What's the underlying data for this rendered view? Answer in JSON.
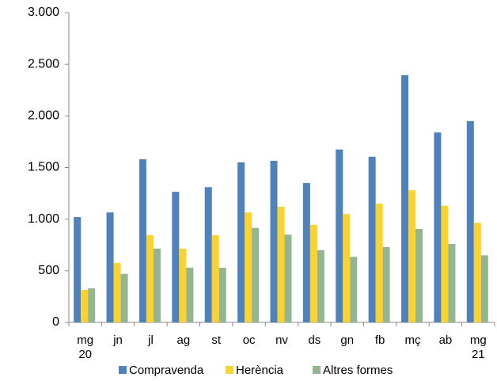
{
  "chart_data": {
    "type": "bar",
    "categories": [
      "mg\n20",
      "jn",
      "jl",
      "ag",
      "st",
      "oc",
      "nv",
      "ds",
      "gn",
      "fb",
      "mç",
      "ab",
      "mg\n21"
    ],
    "series": [
      {
        "name": "Compravenda",
        "color": "#4f81bd",
        "values": [
          1020,
          1065,
          1580,
          1265,
          1310,
          1550,
          1565,
          1350,
          1675,
          1605,
          2395,
          1840,
          1950
        ]
      },
      {
        "name": "Herència",
        "color": "#fcd22e",
        "values": [
          315,
          575,
          845,
          715,
          845,
          1065,
          1120,
          945,
          1050,
          1150,
          1280,
          1130,
          965
        ]
      },
      {
        "name": "Altres formes",
        "color": "#93b592",
        "values": [
          330,
          470,
          715,
          530,
          530,
          915,
          850,
          700,
          635,
          730,
          905,
          760,
          650
        ]
      }
    ],
    "ylim": [
      0,
      3000
    ],
    "yticks": [
      0,
      500,
      {
        "value": 1000,
        "label": "1.000"
      },
      {
        "value": 1500,
        "label": "1.500"
      },
      {
        "value": 2000,
        "label": "2.000"
      },
      {
        "value": 2500,
        "label": "2.500"
      },
      {
        "value": 3000,
        "label": "3.000"
      }
    ],
    "grid": false,
    "legend": "bottom"
  }
}
